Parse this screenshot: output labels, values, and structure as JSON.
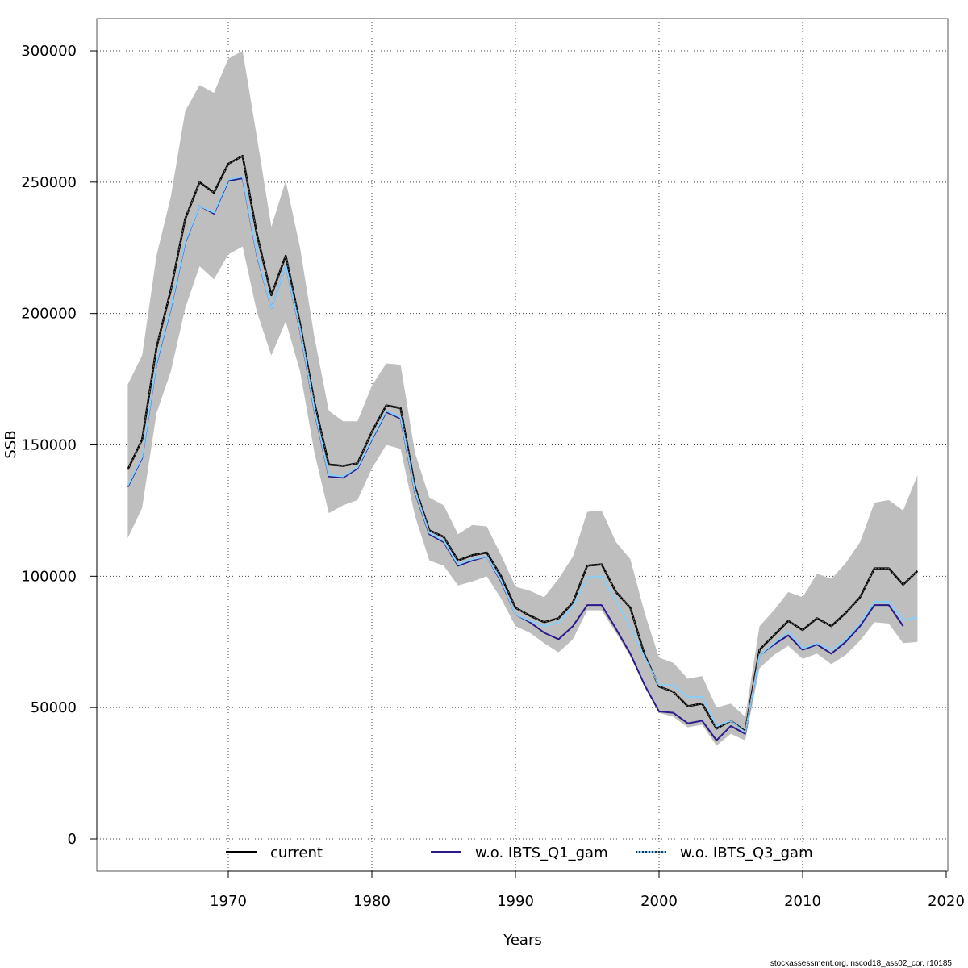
{
  "chart_data": {
    "type": "line",
    "title": "",
    "xlabel": "Years",
    "ylabel": "SSB",
    "xlim": [
      1961,
      2020
    ],
    "ylim": [
      -12000,
      312000
    ],
    "xticks": [
      1970,
      1980,
      1990,
      2000,
      2010,
      2020
    ],
    "yticks": [
      0,
      50000,
      100000,
      150000,
      200000,
      250000,
      300000
    ],
    "grid": true,
    "legend": "bottom",
    "colors": {
      "current": "#000000",
      "q1": "#2a1a8a",
      "q3": "#87cefa",
      "band": "#bebebe"
    },
    "band": {
      "x": [
        1963,
        1964,
        1965,
        1966,
        1967,
        1968,
        1969,
        1970,
        1971,
        1972,
        1973,
        1974,
        1975,
        1976,
        1977,
        1978,
        1979,
        1980,
        1981,
        1982,
        1983,
        1984,
        1985,
        1986,
        1987,
        1988,
        1989,
        1990,
        1991,
        1992,
        1993,
        1994,
        1995,
        1996,
        1997,
        1998,
        1999,
        2000,
        2001,
        2002,
        2003,
        2004,
        2005,
        2006,
        2007,
        2008,
        2009,
        2010,
        2011,
        2012,
        2013,
        2014,
        2015,
        2016,
        2017,
        2018
      ],
      "upper": [
        173000,
        184000,
        222000,
        244500,
        277000,
        287000,
        284000,
        297000,
        300000,
        267000,
        233000,
        250500,
        225000,
        191000,
        163000,
        159000,
        159000,
        172500,
        181000,
        180500,
        147000,
        130000,
        127000,
        116000,
        119500,
        119000,
        108000,
        96000,
        94500,
        92000,
        99000,
        107500,
        124500,
        125000,
        113000,
        106500,
        86000,
        69000,
        67000,
        61000,
        62000,
        50000,
        51500,
        46500,
        81000,
        87000,
        94000,
        92000,
        101000,
        99000,
        105000,
        113000,
        128000,
        129000,
        125000,
        138500
      ],
      "lower": [
        114500,
        126000,
        162000,
        178000,
        202000,
        218000,
        213000,
        222500,
        225500,
        200500,
        184000,
        197000,
        178000,
        147000,
        124000,
        127000,
        129000,
        141000,
        150000,
        148500,
        123000,
        106000,
        104000,
        96500,
        98000,
        100000,
        91500,
        81000,
        78500,
        74500,
        71000,
        76000,
        87000,
        87000,
        78500,
        69500,
        58000,
        48000,
        46500,
        42500,
        43500,
        35500,
        40000,
        37500,
        65000,
        70000,
        73500,
        68500,
        70500,
        66500,
        70000,
        75500,
        82500,
        82000,
        74500,
        75000
      ]
    },
    "series": [
      {
        "name": "current",
        "style": "solid",
        "x": [
          1963,
          1964,
          1965,
          1966,
          1967,
          1968,
          1969,
          1970,
          1971,
          1972,
          1973,
          1974,
          1975,
          1976,
          1977,
          1978,
          1979,
          1980,
          1981,
          1982,
          1983,
          1984,
          1985,
          1986,
          1987,
          1988,
          1989,
          1990,
          1991,
          1992,
          1993,
          1994,
          1995,
          1996,
          1997,
          1998,
          1999,
          2000,
          2001,
          2002,
          2003,
          2004,
          2005,
          2006,
          2007,
          2008,
          2009,
          2010,
          2011,
          2012,
          2013,
          2014,
          2015,
          2016,
          2017,
          2018
        ],
        "values": [
          140600,
          152000,
          187000,
          209000,
          236000,
          250000,
          246000,
          257000,
          260000,
          230000,
          207000,
          222000,
          196000,
          166000,
          142500,
          142000,
          143000,
          155000,
          165000,
          164000,
          134000,
          117500,
          115000,
          106000,
          108000,
          109000,
          100000,
          88000,
          85000,
          82500,
          84000,
          90000,
          104000,
          104500,
          94000,
          88000,
          70000,
          58000,
          56000,
          50500,
          51500,
          42000,
          45000,
          41000,
          72000,
          77500,
          83000,
          79500,
          84000,
          81000,
          86000,
          92000,
          103000,
          103000,
          96800,
          102000
        ]
      },
      {
        "name": "w.o. IBTS_Q1_gam",
        "style": "solid",
        "x": [
          1963,
          1964,
          1965,
          1966,
          1967,
          1968,
          1969,
          1970,
          1971,
          1972,
          1973,
          1974,
          1975,
          1976,
          1977,
          1978,
          1979,
          1980,
          1981,
          1982,
          1983,
          1984,
          1985,
          1986,
          1987,
          1988,
          1989,
          1990,
          1991,
          1992,
          1993,
          1994,
          1995,
          1996,
          1997,
          1998,
          1999,
          2000,
          2001,
          2002,
          2003,
          2004,
          2005,
          2006,
          2007,
          2008,
          2009,
          2010,
          2011,
          2012,
          2013,
          2014,
          2015,
          2016,
          2017
        ],
        "values": [
          134000,
          145000,
          181000,
          202000,
          227000,
          241000,
          238000,
          250500,
          251500,
          222000,
          202000,
          218500,
          193500,
          163000,
          138000,
          137500,
          141000,
          152000,
          162500,
          160000,
          132000,
          116000,
          113000,
          104000,
          106000,
          107500,
          98000,
          85500,
          82500,
          78500,
          76000,
          81000,
          89000,
          89000,
          80000,
          70500,
          58500,
          48500,
          48000,
          44000,
          45000,
          37500,
          43000,
          40000,
          70000,
          74000,
          77500,
          72000,
          74000,
          70500,
          75000,
          81000,
          89000,
          89000,
          81000
        ]
      },
      {
        "name": "w.o. IBTS_Q3_gam",
        "style": "dotted",
        "x": [
          1963,
          1964,
          1965,
          1966,
          1967,
          1968,
          1969,
          1970,
          1971,
          1972,
          1973,
          1974,
          1975,
          1976,
          1977,
          1978,
          1979,
          1980,
          1981,
          1982,
          1983,
          1984,
          1985,
          1986,
          1987,
          1988,
          1989,
          1990,
          1991,
          1992,
          1993,
          1994,
          1995,
          1996,
          1997,
          1998,
          1999,
          2000,
          2001,
          2002,
          2003,
          2004,
          2005,
          2006,
          2007,
          2008,
          2009,
          2010,
          2011,
          2012,
          2013,
          2014,
          2015,
          2016,
          2017,
          2018
        ],
        "values": [
          134500,
          145500,
          181500,
          202500,
          227500,
          241000,
          238500,
          251000,
          252000,
          222500,
          202000,
          218500,
          194000,
          163500,
          138500,
          138000,
          141500,
          152500,
          163000,
          160500,
          132500,
          116500,
          113500,
          104500,
          106500,
          107500,
          98500,
          85500,
          83000,
          81000,
          82500,
          88500,
          99500,
          100000,
          90500,
          80500,
          69000,
          58500,
          58500,
          54000,
          54000,
          43000,
          45000,
          40500,
          70000,
          74500,
          79000,
          72500,
          74500,
          72000,
          76000,
          82000,
          90300,
          90300,
          83200,
          84400
        ]
      }
    ]
  },
  "footer": "stockassessment.org, nscod18_ass02_cor, r10185"
}
